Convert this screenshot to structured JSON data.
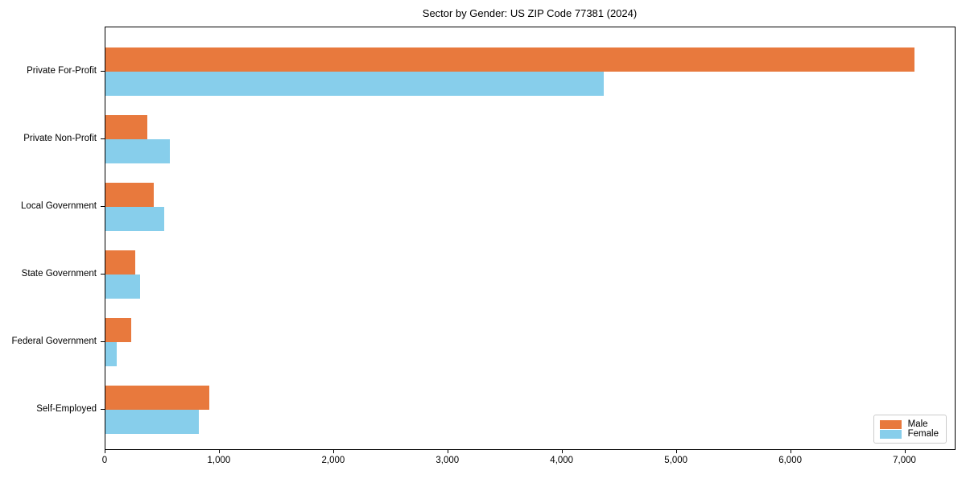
{
  "chart_data": {
    "type": "bar",
    "orientation": "horizontal",
    "title": "Sector by Gender: US ZIP Code 77381 (2024)",
    "categories": [
      "Private For-Profit",
      "Private Non-Profit",
      "Local Government",
      "State Government",
      "Federal Government",
      "Self-Employed"
    ],
    "series": [
      {
        "name": "Male",
        "color": "#E8793D",
        "values": [
          7080,
          365,
          420,
          260,
          225,
          905
        ]
      },
      {
        "name": "Female",
        "color": "#87CEEB",
        "values": [
          4360,
          560,
          515,
          300,
          100,
          820
        ]
      }
    ],
    "xlabel": "",
    "ylabel": "",
    "xlim": [
      0,
      7440
    ],
    "x_ticks": [
      0,
      1000,
      2000,
      3000,
      4000,
      5000,
      6000,
      7000
    ],
    "x_tick_labels": [
      "0",
      "1,000",
      "2,000",
      "3,000",
      "4,000",
      "5,000",
      "6,000",
      "7,000"
    ],
    "grid": false,
    "legend": {
      "position": "lower right",
      "entries": [
        "Male",
        "Female"
      ]
    }
  }
}
